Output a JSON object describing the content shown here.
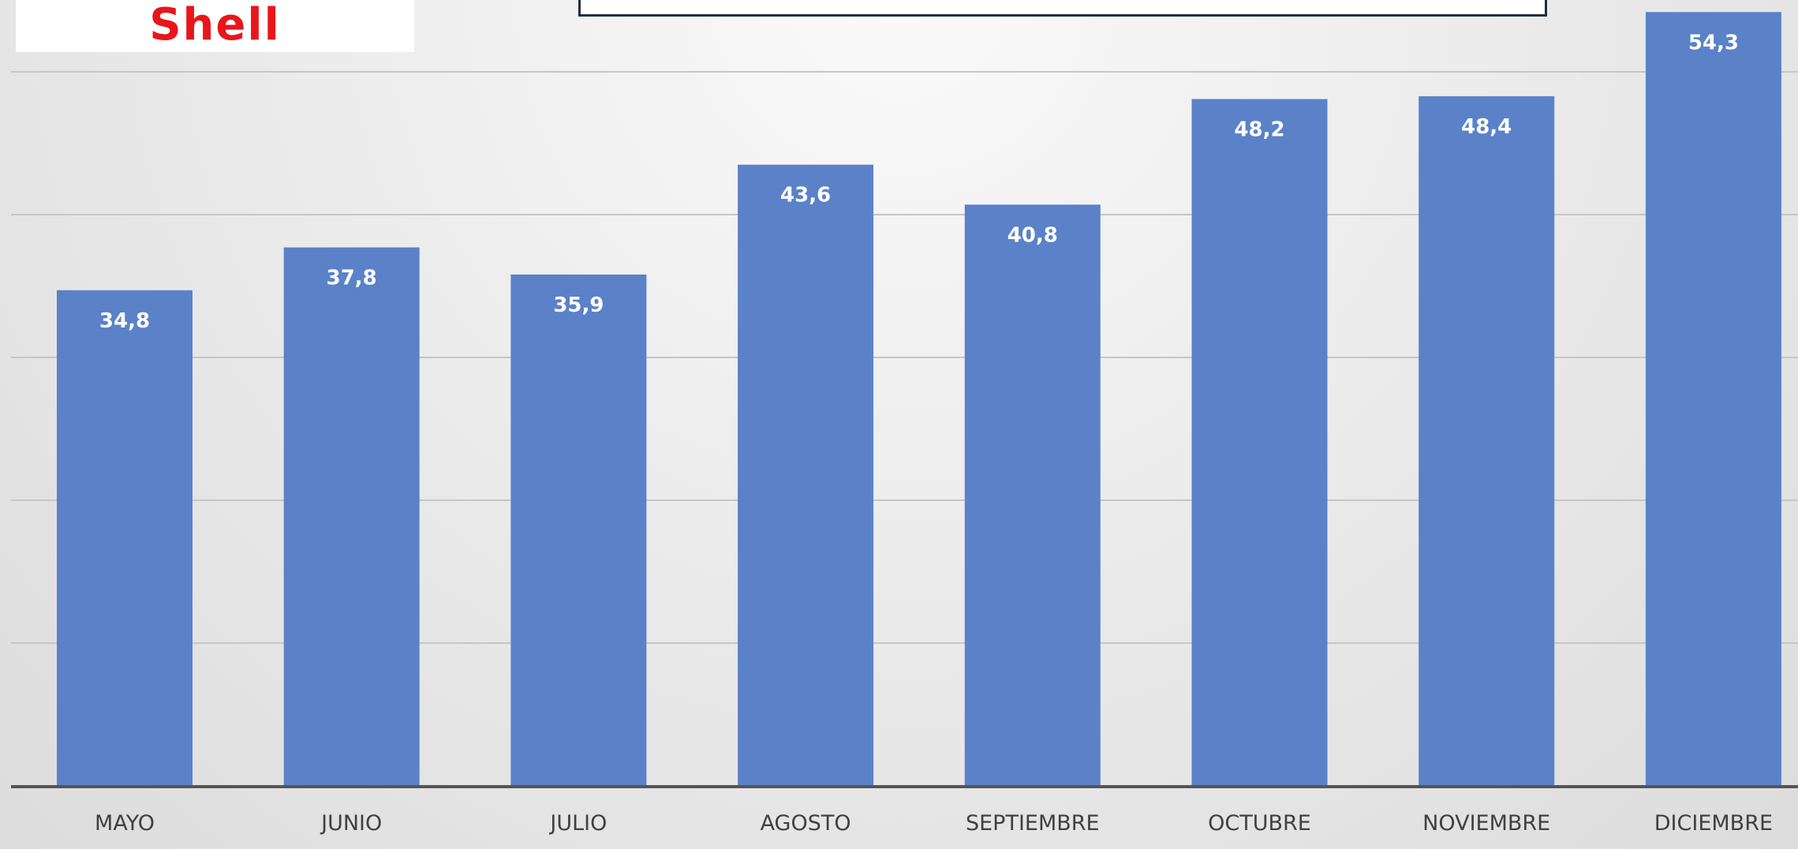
{
  "logo": {
    "text": "Shell"
  },
  "title_box": {
    "text": ""
  },
  "chart_data": {
    "type": "bar",
    "categories": [
      "MAYO",
      "JUNIO",
      "JULIO",
      "AGOSTO",
      "SEPTIEMBRE",
      "OCTUBRE",
      "NOVIEMBRE",
      "DICIEMBRE"
    ],
    "values": [
      34.8,
      37.8,
      35.9,
      43.6,
      40.8,
      48.2,
      48.4,
      54.3
    ],
    "data_labels": [
      "34,8",
      "37,8",
      "35,9",
      "43,6",
      "40,8",
      "48,2",
      "48,4",
      "54,3"
    ],
    "ylim": [
      0,
      55
    ],
    "grid": true,
    "title": "",
    "xlabel": "",
    "ylabel": "",
    "bar_color": "#5b82c8",
    "grid_color": "#c6c6c6",
    "axis_color": "#555555"
  }
}
